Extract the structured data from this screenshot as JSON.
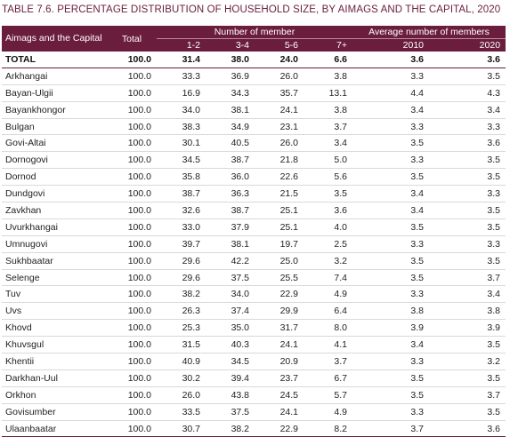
{
  "title": "TABLE 7.6. PERCENTAGE DISTRIBUTION OF HOUSEHOLD SIZE, BY AIMAGS AND THE CAPITAL, 2020",
  "header": {
    "region": "Aimags and the Capital",
    "total": "Total",
    "members_group": "Number of member",
    "avg_group": "Average number of members",
    "cols": [
      "1-2",
      "3-4",
      "5-6",
      "7+",
      "2010",
      "2020"
    ]
  },
  "rows": [
    {
      "name": "TOTAL",
      "v": [
        "100.0",
        "31.4",
        "38.0",
        "24.0",
        "6.6",
        "3.6",
        "3.6"
      ]
    },
    {
      "name": "Arkhangai",
      "v": [
        "100.0",
        "33.3",
        "36.9",
        "26.0",
        "3.8",
        "3.3",
        "3.5"
      ]
    },
    {
      "name": "Bayan-Ulgii",
      "v": [
        "100.0",
        "16.9",
        "34.3",
        "35.7",
        "13.1",
        "4.4",
        "4.3"
      ]
    },
    {
      "name": "Bayankhongor",
      "v": [
        "100.0",
        "34.0",
        "38.1",
        "24.1",
        "3.8",
        "3.4",
        "3.4"
      ]
    },
    {
      "name": "Bulgan",
      "v": [
        "100.0",
        "38.3",
        "34.9",
        "23.1",
        "3.7",
        "3.3",
        "3.3"
      ]
    },
    {
      "name": "Govi-Altai",
      "v": [
        "100.0",
        "30.1",
        "40.5",
        "26.0",
        "3.4",
        "3.5",
        "3.6"
      ]
    },
    {
      "name": "Dornogovi",
      "v": [
        "100.0",
        "34.5",
        "38.7",
        "21.8",
        "5.0",
        "3.3",
        "3.5"
      ]
    },
    {
      "name": "Dornod",
      "v": [
        "100.0",
        "35.8",
        "36.0",
        "22.6",
        "5.6",
        "3.5",
        "3.5"
      ]
    },
    {
      "name": "Dundgovi",
      "v": [
        "100.0",
        "38.7",
        "36.3",
        "21.5",
        "3.5",
        "3.4",
        "3.3"
      ]
    },
    {
      "name": "Zavkhan",
      "v": [
        "100.0",
        "32.6",
        "38.7",
        "25.1",
        "3.6",
        "3.4",
        "3.5"
      ]
    },
    {
      "name": "Uvurkhangai",
      "v": [
        "100.0",
        "33.0",
        "37.9",
        "25.1",
        "4.0",
        "3.5",
        "3.5"
      ]
    },
    {
      "name": "Umnugovi",
      "v": [
        "100.0",
        "39.7",
        "38.1",
        "19.7",
        "2.5",
        "3.3",
        "3.3"
      ]
    },
    {
      "name": "Sukhbaatar",
      "v": [
        "100.0",
        "29.6",
        "42.2",
        "25.0",
        "3.2",
        "3.5",
        "3.5"
      ]
    },
    {
      "name": "Selenge",
      "v": [
        "100.0",
        "29.6",
        "37.5",
        "25.5",
        "7.4",
        "3.5",
        "3.7"
      ]
    },
    {
      "name": "Tuv",
      "v": [
        "100.0",
        "38.2",
        "34.0",
        "22.9",
        "4.9",
        "3.3",
        "3.4"
      ]
    },
    {
      "name": "Uvs",
      "v": [
        "100.0",
        "26.3",
        "37.4",
        "29.9",
        "6.4",
        "3.8",
        "3.8"
      ]
    },
    {
      "name": "Khovd",
      "v": [
        "100.0",
        "25.3",
        "35.0",
        "31.7",
        "8.0",
        "3.9",
        "3.9"
      ]
    },
    {
      "name": "Khuvsgul",
      "v": [
        "100.0",
        "31.5",
        "40.3",
        "24.1",
        "4.1",
        "3.4",
        "3.5"
      ]
    },
    {
      "name": "Khentii",
      "v": [
        "100.0",
        "40.9",
        "34.5",
        "20.9",
        "3.7",
        "3.3",
        "3.2"
      ]
    },
    {
      "name": "Darkhan-Uul",
      "v": [
        "100.0",
        "30.2",
        "39.4",
        "23.7",
        "6.7",
        "3.5",
        "3.5"
      ]
    },
    {
      "name": "Orkhon",
      "v": [
        "100.0",
        "26.0",
        "43.8",
        "24.5",
        "5.7",
        "3.5",
        "3.7"
      ]
    },
    {
      "name": "Govisumber",
      "v": [
        "100.0",
        "33.5",
        "37.5",
        "24.1",
        "4.9",
        "3.3",
        "3.5"
      ]
    },
    {
      "name": "Ulaanbaatar",
      "v": [
        "100.0",
        "30.7",
        "38.2",
        "22.9",
        "8.2",
        "3.7",
        "3.6"
      ]
    }
  ]
}
